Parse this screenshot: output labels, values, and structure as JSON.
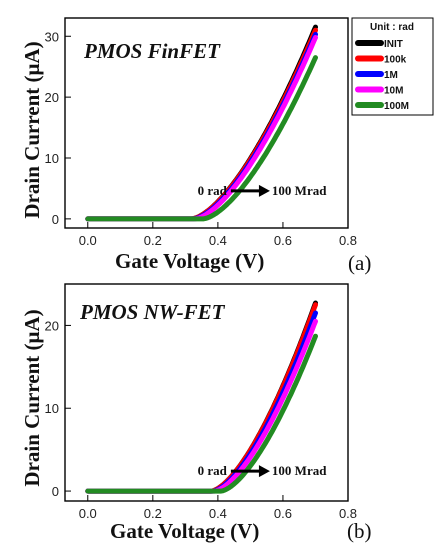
{
  "legend_title": "Unit : rad",
  "colors": {
    "INIT": "#000000",
    "100k": "#ff0000",
    "1M": "#0000ff",
    "10M": "#ff00ff",
    "100M": "#228b22"
  },
  "chart_data": [
    {
      "type": "line",
      "panel_label": "(a)",
      "title": "PMOS FinFET",
      "xlabel": "Gate Voltage (V)",
      "ylabel": "Drain Current (μA)",
      "xlim": [
        -0.07,
        0.8
      ],
      "ylim": [
        -1.5,
        33
      ],
      "x_ticks": [
        "0.0",
        "0.2",
        "0.4",
        "0.6",
        "0.8"
      ],
      "y_ticks": [
        "0",
        "10",
        "20",
        "30"
      ],
      "annotation": {
        "start_label": "0 rad",
        "end_label": "100 Mrad",
        "y": 4.6,
        "x_start": 0.44,
        "x_end": 0.56
      },
      "series": [
        {
          "name": "INIT",
          "vth": 0.32,
          "values_at_0_7": 31.5
        },
        {
          "name": "100k",
          "vth": 0.32,
          "values_at_0_7": 31.0
        },
        {
          "name": "1M",
          "vth": 0.325,
          "values_at_0_7": 30.3
        },
        {
          "name": "10M",
          "vth": 0.33,
          "values_at_0_7": 29.8
        },
        {
          "name": "100M",
          "vth": 0.355,
          "values_at_0_7": 26.5
        }
      ]
    },
    {
      "type": "line",
      "panel_label": "(b)",
      "title": "PMOS NW-FET",
      "xlabel": "Gate Voltage (V)",
      "ylabel": "Drain Current (μA)",
      "xlim": [
        -0.07,
        0.8
      ],
      "ylim": [
        -1.2,
        25
      ],
      "x_ticks": [
        "0.0",
        "0.2",
        "0.4",
        "0.6",
        "0.8"
      ],
      "y_ticks": [
        "0",
        "10",
        "20"
      ],
      "annotation": {
        "start_label": "0 rad",
        "end_label": "100 Mrad",
        "y": 2.4,
        "x_start": 0.44,
        "x_end": 0.56
      },
      "series": [
        {
          "name": "INIT",
          "vth": 0.38,
          "values_at_0_7": 22.7
        },
        {
          "name": "100k",
          "vth": 0.38,
          "values_at_0_7": 22.5
        },
        {
          "name": "1M",
          "vth": 0.385,
          "values_at_0_7": 21.5
        },
        {
          "name": "10M",
          "vth": 0.39,
          "values_at_0_7": 20.5
        },
        {
          "name": "100M",
          "vth": 0.41,
          "values_at_0_7": 18.7
        }
      ]
    }
  ]
}
